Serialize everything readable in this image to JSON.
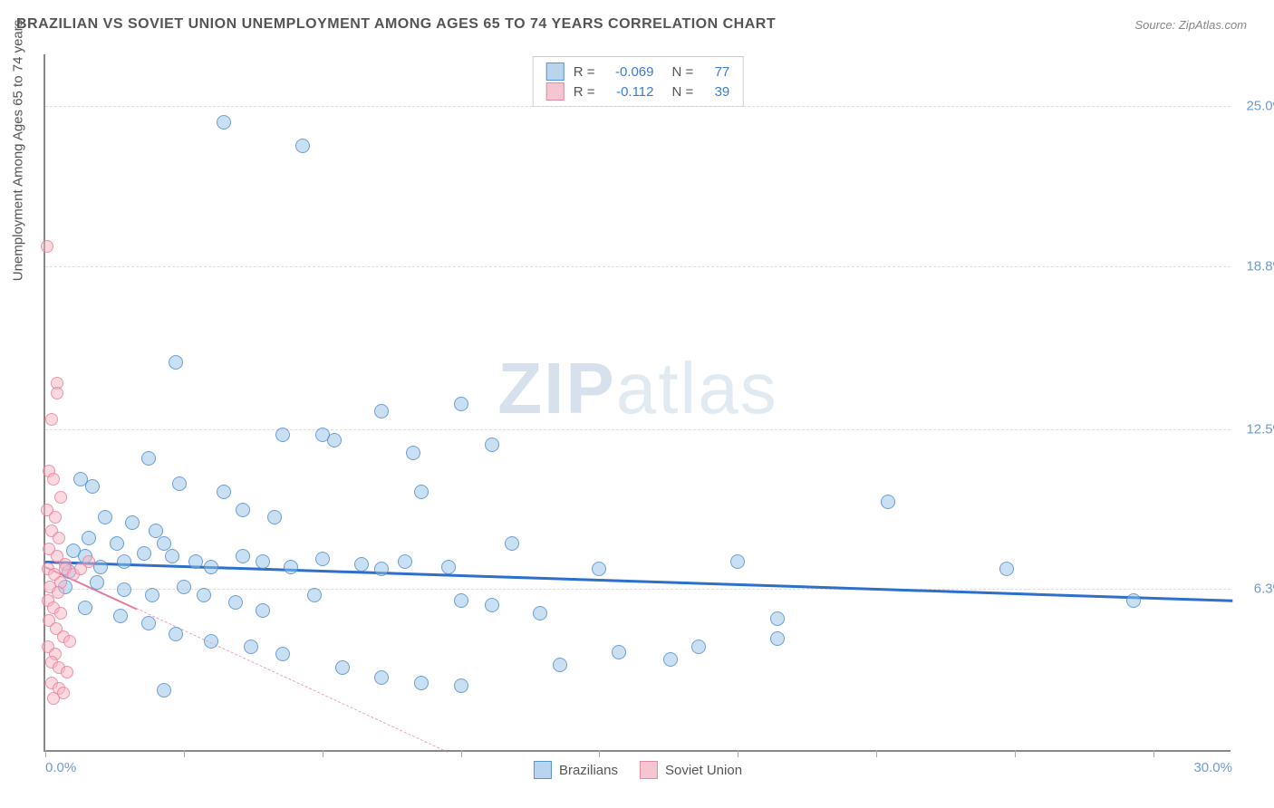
{
  "title": "BRAZILIAN VS SOVIET UNION UNEMPLOYMENT AMONG AGES 65 TO 74 YEARS CORRELATION CHART",
  "source": "Source: ZipAtlas.com",
  "y_axis_label": "Unemployment Among Ages 65 to 74 years",
  "watermark_bold": "ZIP",
  "watermark_light": "atlas",
  "chart": {
    "type": "scatter",
    "background_color": "#ffffff",
    "grid_color": "#dddddd",
    "axis_color": "#888888",
    "xlim": [
      0,
      30
    ],
    "ylim": [
      0,
      27
    ],
    "x_ticks": [
      0,
      3.5,
      7,
      10.5,
      14,
      17.5,
      21,
      24.5,
      28
    ],
    "x_tick_labels": {
      "0": "0.0%",
      "30": "30.0%"
    },
    "y_gridlines": [
      6.3,
      12.5,
      18.8,
      25.0
    ],
    "y_tick_labels": [
      "6.3%",
      "12.5%",
      "18.8%",
      "25.0%"
    ],
    "marker_size_blue": 16,
    "marker_size_pink": 14,
    "series": [
      {
        "name": "Brazilians",
        "color_fill": "rgba(147, 193, 232, 0.5)",
        "color_stroke": "rgba(70, 130, 200, 0.7)",
        "swatch_fill": "#b8d4ef",
        "swatch_border": "#5a94d0",
        "R": "-0.069",
        "N": "77",
        "trend": {
          "y_at_x0": 7.4,
          "y_at_x30": 5.9,
          "color": "#2d6fc9",
          "width": 3,
          "style": "solid"
        },
        "points": [
          [
            4.5,
            24.3
          ],
          [
            6.5,
            23.4
          ],
          [
            8.5,
            13.1
          ],
          [
            3.3,
            15.0
          ],
          [
            6.0,
            12.2
          ],
          [
            7.0,
            12.2
          ],
          [
            7.3,
            12.0
          ],
          [
            10.5,
            13.4
          ],
          [
            2.6,
            11.3
          ],
          [
            0.9,
            10.5
          ],
          [
            1.2,
            10.2
          ],
          [
            1.5,
            9.0
          ],
          [
            2.2,
            8.8
          ],
          [
            2.8,
            8.5
          ],
          [
            3.4,
            10.3
          ],
          [
            4.5,
            10.0
          ],
          [
            5.0,
            9.3
          ],
          [
            5.8,
            9.0
          ],
          [
            3.0,
            8.0
          ],
          [
            1.1,
            8.2
          ],
          [
            1.8,
            8.0
          ],
          [
            0.7,
            7.7
          ],
          [
            1.0,
            7.5
          ],
          [
            1.4,
            7.1
          ],
          [
            2.0,
            7.3
          ],
          [
            2.5,
            7.6
          ],
          [
            3.2,
            7.5
          ],
          [
            3.8,
            7.3
          ],
          [
            4.2,
            7.1
          ],
          [
            5.0,
            7.5
          ],
          [
            5.5,
            7.3
          ],
          [
            6.2,
            7.1
          ],
          [
            7.0,
            7.4
          ],
          [
            8.0,
            7.2
          ],
          [
            9.1,
            7.3
          ],
          [
            9.5,
            10.0
          ],
          [
            10.2,
            7.1
          ],
          [
            10.5,
            5.8
          ],
          [
            11.3,
            5.6
          ],
          [
            11.8,
            8.0
          ],
          [
            12.5,
            5.3
          ],
          [
            13.0,
            3.3
          ],
          [
            14.5,
            3.8
          ],
          [
            14.0,
            7.0
          ],
          [
            15.8,
            3.5
          ],
          [
            16.5,
            4.0
          ],
          [
            18.5,
            5.1
          ],
          [
            18.5,
            4.3
          ],
          [
            21.3,
            9.6
          ],
          [
            24.3,
            7.0
          ],
          [
            27.5,
            5.8
          ],
          [
            0.6,
            6.9
          ],
          [
            1.3,
            6.5
          ],
          [
            2.0,
            6.2
          ],
          [
            2.7,
            6.0
          ],
          [
            3.5,
            6.3
          ],
          [
            4.0,
            6.0
          ],
          [
            4.8,
            5.7
          ],
          [
            5.5,
            5.4
          ],
          [
            1.0,
            5.5
          ],
          [
            1.9,
            5.2
          ],
          [
            2.6,
            4.9
          ],
          [
            3.3,
            4.5
          ],
          [
            4.2,
            4.2
          ],
          [
            5.2,
            4.0
          ],
          [
            6.0,
            3.7
          ],
          [
            7.5,
            3.2
          ],
          [
            8.5,
            2.8
          ],
          [
            9.5,
            2.6
          ],
          [
            10.5,
            2.5
          ],
          [
            3.0,
            2.3
          ],
          [
            0.5,
            6.3
          ],
          [
            17.5,
            7.3
          ],
          [
            6.8,
            6.0
          ],
          [
            8.5,
            7.0
          ],
          [
            11.3,
            11.8
          ],
          [
            9.3,
            11.5
          ]
        ]
      },
      {
        "name": "Soviet Union",
        "color_fill": "rgba(248, 180, 196, 0.5)",
        "color_stroke": "rgba(230, 120, 150, 0.7)",
        "swatch_fill": "#f6c5d2",
        "swatch_border": "#e08ba3",
        "R": "-0.112",
        "N": "39",
        "trend": {
          "y_at_x0": 7.2,
          "y_at_x30": -14,
          "color": "#e57d99",
          "width": 2,
          "style": "solid_then_dashed",
          "dash_after_x": 2.3
        },
        "points": [
          [
            0.05,
            19.5
          ],
          [
            0.3,
            14.2
          ],
          [
            0.3,
            13.8
          ],
          [
            0.15,
            12.8
          ],
          [
            0.1,
            10.8
          ],
          [
            0.2,
            10.5
          ],
          [
            0.4,
            9.8
          ],
          [
            0.05,
            9.3
          ],
          [
            0.25,
            9.0
          ],
          [
            0.15,
            8.5
          ],
          [
            0.35,
            8.2
          ],
          [
            0.1,
            7.8
          ],
          [
            0.3,
            7.5
          ],
          [
            0.5,
            7.2
          ],
          [
            0.08,
            7.0
          ],
          [
            0.22,
            6.8
          ],
          [
            0.4,
            6.5
          ],
          [
            0.12,
            6.3
          ],
          [
            0.32,
            6.1
          ],
          [
            0.5,
            7.0
          ],
          [
            0.7,
            6.8
          ],
          [
            0.9,
            7.0
          ],
          [
            0.06,
            5.8
          ],
          [
            0.2,
            5.5
          ],
          [
            0.38,
            5.3
          ],
          [
            0.1,
            5.0
          ],
          [
            0.28,
            4.7
          ],
          [
            0.45,
            4.4
          ],
          [
            0.62,
            4.2
          ],
          [
            0.08,
            4.0
          ],
          [
            0.25,
            3.7
          ],
          [
            0.15,
            3.4
          ],
          [
            0.35,
            3.2
          ],
          [
            0.55,
            3.0
          ],
          [
            0.15,
            2.6
          ],
          [
            0.35,
            2.4
          ],
          [
            0.2,
            2.0
          ],
          [
            0.45,
            2.2
          ],
          [
            1.1,
            7.3
          ]
        ]
      }
    ]
  },
  "legend_bottom": [
    {
      "label": "Brazilians",
      "fill": "#b8d4ef",
      "border": "#5a94d0"
    },
    {
      "label": "Soviet Union",
      "fill": "#f6c5d2",
      "border": "#e08ba3"
    }
  ]
}
